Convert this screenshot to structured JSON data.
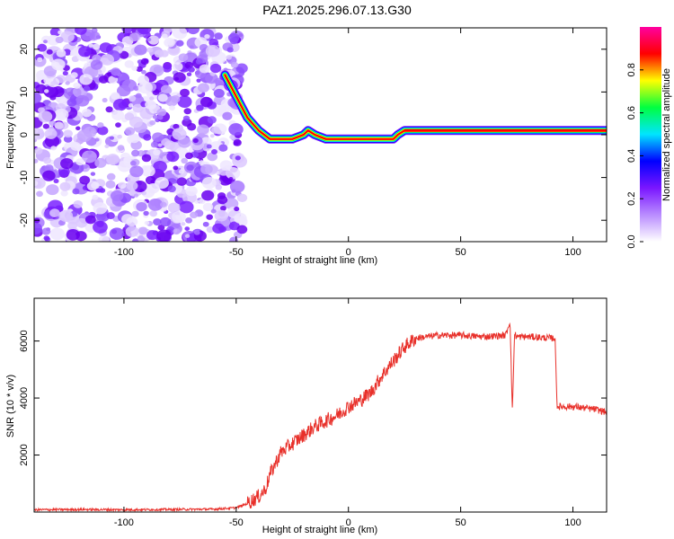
{
  "title": "PAZ1.2025.296.07.13.G30",
  "chart_data": [
    {
      "type": "heatmap",
      "xlabel": "Height of straight line (km)",
      "ylabel": "Frequency (Hz)",
      "xlim": [
        -140,
        115
      ],
      "ylim": [
        -25,
        25
      ],
      "xticks": [
        -100,
        -50,
        0,
        50,
        100
      ],
      "xtick_labels": [
        "-100",
        "-50",
        "0",
        "50",
        "100"
      ],
      "yticks": [
        -20,
        -10,
        0,
        10,
        20
      ],
      "ytick_labels": [
        "-20",
        "-10",
        "0",
        "10",
        "20"
      ],
      "grid": false,
      "noise_region_x": [
        -140,
        -55
      ],
      "ridge": {
        "x": [
          -55,
          -50,
          -45,
          -40,
          -35,
          -30,
          -25,
          -20,
          -18,
          -15,
          -10,
          -5,
          0,
          5,
          10,
          15,
          20,
          22,
          25,
          30,
          40,
          50,
          60,
          70,
          80,
          90,
          100,
          110,
          115
        ],
        "y": [
          14,
          9,
          4,
          1,
          -1,
          -1,
          -1,
          0,
          1,
          0,
          -1,
          -1,
          -1,
          -1,
          -1,
          -1,
          -1,
          0,
          1,
          1,
          1,
          1,
          1,
          1,
          1,
          1,
          1,
          1,
          1
        ]
      },
      "colorbar": {
        "label": "Normalized spectral amplitude",
        "range": [
          0,
          1
        ],
        "ticks": [
          0.0,
          0.2,
          0.4,
          0.6,
          0.8
        ],
        "tick_labels": [
          "0.0",
          "0.2",
          "0.4",
          "0.6",
          "0.8"
        ],
        "colormap": [
          "#ffffff",
          "#b98cff",
          "#7a16ff",
          "#0000ff",
          "#00e5ff",
          "#00ff40",
          "#ffff00",
          "#ff0000",
          "#ff00a0"
        ]
      }
    },
    {
      "type": "line",
      "xlabel": "Height of straight line (km)",
      "ylabel": "SNR (10 * v/v)",
      "xlim": [
        -140,
        115
      ],
      "ylim": [
        0,
        7500
      ],
      "xticks": [
        -100,
        -50,
        0,
        50,
        100
      ],
      "xtick_labels": [
        "-100",
        "-50",
        "0",
        "50",
        "100"
      ],
      "yticks": [
        2000,
        4000,
        6000
      ],
      "ytick_labels": [
        "2000",
        "4000",
        "6000"
      ],
      "grid": false,
      "series": [
        {
          "color": "#e8302a",
          "x": [
            -140,
            -120,
            -100,
            -80,
            -60,
            -50,
            -45,
            -40,
            -37,
            -35,
            -32,
            -30,
            -25,
            -20,
            -15,
            -10,
            -5,
            0,
            5,
            10,
            15,
            20,
            25,
            30,
            35,
            40,
            50,
            60,
            70,
            72,
            73,
            74,
            75,
            80,
            90,
            92,
            93,
            95,
            100,
            105,
            110,
            115
          ],
          "y": [
            80,
            90,
            80,
            90,
            100,
            150,
            300,
            550,
            800,
            1300,
            1800,
            2100,
            2400,
            2700,
            3000,
            3200,
            3400,
            3700,
            3900,
            4200,
            4800,
            5300,
            5800,
            6100,
            6150,
            6200,
            6200,
            6150,
            6200,
            6700,
            3500,
            6250,
            6150,
            6150,
            6100,
            6100,
            3700,
            3700,
            3700,
            3650,
            3600,
            3500
          ]
        }
      ]
    }
  ]
}
